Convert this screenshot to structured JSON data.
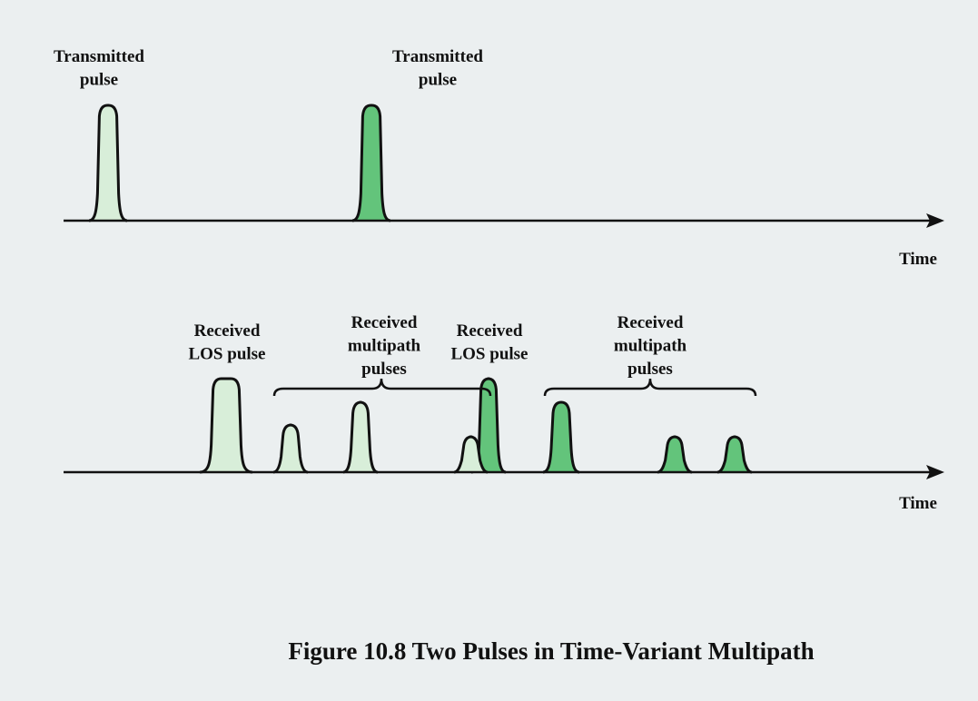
{
  "labels": [
    {
      "lines": [
        "Transmitted",
        "pulse"
      ]
    },
    {
      "lines": [
        "Transmitted",
        "pulse"
      ]
    },
    {
      "lines": [
        "Time"
      ]
    },
    {
      "lines": [
        "Received",
        "LOS pulse"
      ]
    },
    {
      "lines": [
        "Received",
        "multipath",
        "pulses"
      ]
    },
    {
      "lines": [
        "Received",
        "LOS pulse"
      ]
    },
    {
      "lines": [
        "Received",
        "multipath",
        "pulses"
      ]
    },
    {
      "lines": [
        "Time"
      ]
    }
  ],
  "caption": "Figure 10.8 Two Pulses in Time-Variant Multipath"
}
